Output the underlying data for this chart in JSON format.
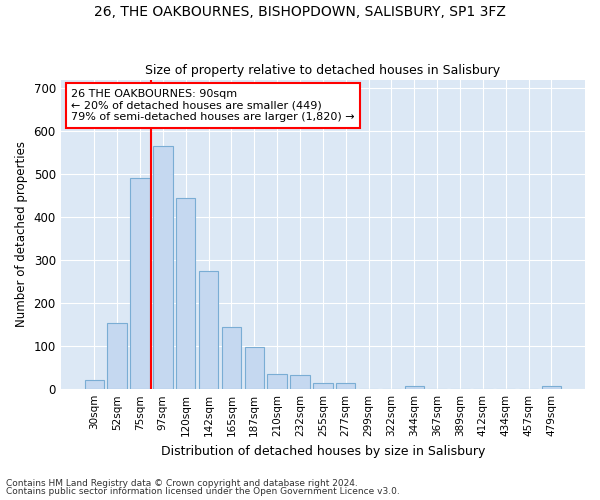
{
  "title1": "26, THE OAKBOURNES, BISHOPDOWN, SALISBURY, SP1 3FZ",
  "title2": "Size of property relative to detached houses in Salisbury",
  "xlabel": "Distribution of detached houses by size in Salisbury",
  "ylabel": "Number of detached properties",
  "categories": [
    "30sqm",
    "52sqm",
    "75sqm",
    "97sqm",
    "120sqm",
    "142sqm",
    "165sqm",
    "187sqm",
    "210sqm",
    "232sqm",
    "255sqm",
    "277sqm",
    "299sqm",
    "322sqm",
    "344sqm",
    "367sqm",
    "389sqm",
    "412sqm",
    "434sqm",
    "457sqm",
    "479sqm"
  ],
  "values": [
    22,
    155,
    490,
    565,
    445,
    275,
    145,
    97,
    36,
    33,
    14,
    14,
    0,
    0,
    8,
    0,
    0,
    0,
    0,
    0,
    7
  ],
  "bar_color": "#c5d8f0",
  "bar_edge_color": "#7aadd4",
  "bg_color": "#dce8f5",
  "grid_color": "#ffffff",
  "red_line_x": 2.5,
  "annotation_line1": "26 THE OAKBOURNES: 90sqm",
  "annotation_line2": "← 20% of detached houses are smaller (449)",
  "annotation_line3": "79% of semi-detached houses are larger (1,820) →",
  "footnote1": "Contains HM Land Registry data © Crown copyright and database right 2024.",
  "footnote2": "Contains public sector information licensed under the Open Government Licence v3.0.",
  "ylim": [
    0,
    720
  ],
  "yticks": [
    0,
    100,
    200,
    300,
    400,
    500,
    600,
    700
  ]
}
